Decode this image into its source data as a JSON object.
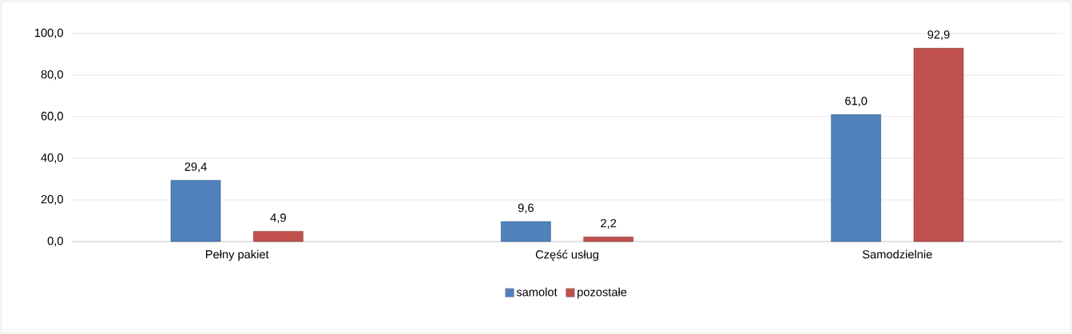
{
  "chart_data": {
    "type": "bar",
    "categories": [
      "Pełny pakiet",
      "Część usług",
      "Samodzielnie"
    ],
    "series": [
      {
        "name": "samolot",
        "color": "#4f81bd",
        "values": [
          29.4,
          9.6,
          61.0
        ],
        "value_labels": [
          "29,4",
          "9,6",
          "61,0"
        ]
      },
      {
        "name": "pozostałe",
        "color": "#c0504d",
        "values": [
          4.9,
          2.2,
          92.9
        ],
        "value_labels": [
          "4,9",
          "2,2",
          "92,9"
        ]
      }
    ],
    "ylim": [
      0,
      100
    ],
    "yticks": [
      {
        "value": 0,
        "label": "0,0"
      },
      {
        "value": 20,
        "label": "20,0"
      },
      {
        "value": 40,
        "label": "40,0"
      },
      {
        "value": 60,
        "label": "60,0"
      },
      {
        "value": 80,
        "label": "80,0"
      },
      {
        "value": 100,
        "label": "100,0"
      }
    ],
    "grid": "y",
    "legend": "bottom"
  }
}
